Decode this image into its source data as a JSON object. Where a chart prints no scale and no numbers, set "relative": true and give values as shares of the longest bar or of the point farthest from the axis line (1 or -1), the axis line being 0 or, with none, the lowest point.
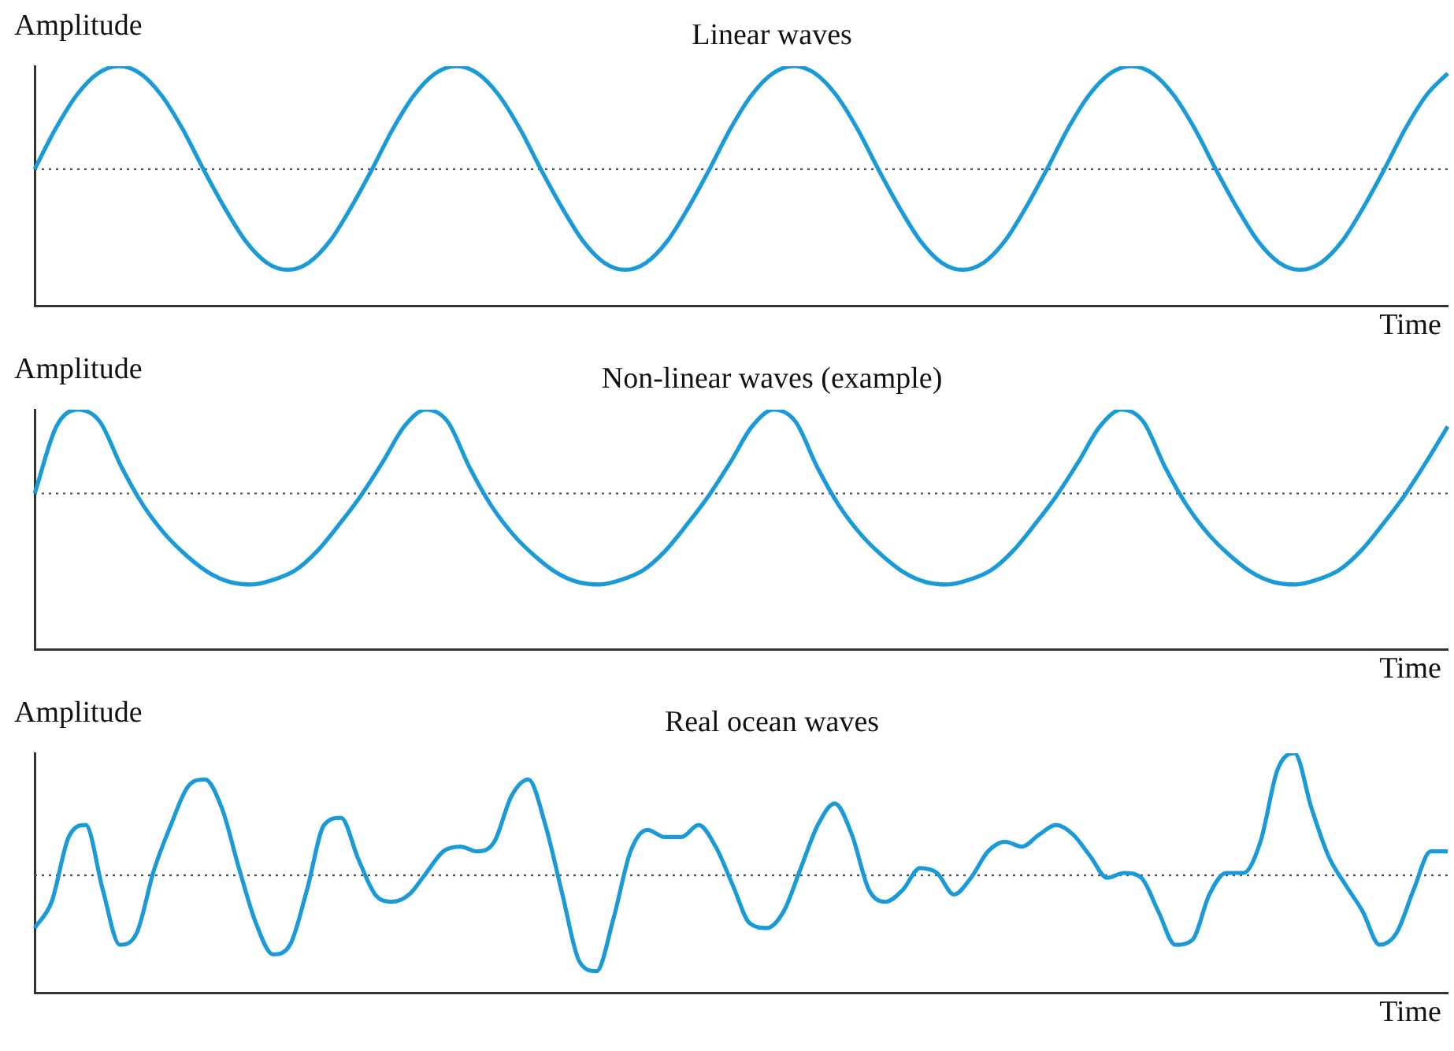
{
  "chart_data": [
    {
      "type": "line",
      "title": "Linear waves",
      "xlabel": "Time",
      "ylabel": "Amplitude",
      "relative": true,
      "marker": "none",
      "categories": [
        null,
        null,
        null,
        null,
        null,
        null,
        null,
        null,
        null,
        null,
        null,
        null,
        null,
        null,
        null,
        null,
        null,
        null,
        null,
        null,
        null,
        null,
        null,
        null,
        null,
        null,
        null,
        null,
        null,
        null,
        null,
        null,
        null,
        null,
        null,
        null,
        null,
        null,
        null,
        null,
        null,
        null,
        null,
        null,
        null,
        null,
        null,
        null,
        null,
        null,
        null,
        null,
        null,
        null,
        null,
        null,
        null,
        null,
        null,
        null,
        null,
        null,
        null,
        null,
        null,
        null,
        null,
        null
      ],
      "series": [
        {
          "color": "#1a9bd7",
          "values": [
            0.57,
            0.74,
            0.88,
            0.97,
            1,
            0.97,
            0.88,
            0.74,
            0.57,
            0.41,
            0.27,
            0.18,
            0.15,
            0.18,
            0.27,
            0.41,
            0.57,
            0.74,
            0.88,
            0.97,
            1,
            0.97,
            0.88,
            0.74,
            0.57,
            0.41,
            0.27,
            0.18,
            0.15,
            0.18,
            0.27,
            0.41,
            0.57,
            0.74,
            0.88,
            0.97,
            1,
            0.97,
            0.88,
            0.74,
            0.57,
            0.41,
            0.27,
            0.18,
            0.15,
            0.18,
            0.27,
            0.41,
            0.57,
            0.74,
            0.88,
            0.97,
            1,
            0.97,
            0.88,
            0.74,
            0.57,
            0.41,
            0.27,
            0.18,
            0.15,
            0.18,
            0.27,
            0.41,
            0.57,
            0.74,
            0.88,
            0.97
          ]
        }
      ],
      "ref_lines": [
        {
          "axis": "y",
          "value": 0.57,
          "color": "#555555",
          "line_style": "dotted"
        }
      ]
    },
    {
      "type": "line",
      "title": "Non-linear waves (example)",
      "xlabel": "Time",
      "ylabel": "Amplitude",
      "relative": true,
      "marker": "none",
      "categories": [
        null,
        null,
        null,
        null,
        null,
        null,
        null,
        null,
        null,
        null,
        null,
        null,
        null,
        null,
        null,
        null,
        null,
        null,
        null,
        null,
        null,
        null,
        null,
        null,
        null,
        null,
        null,
        null,
        null,
        null,
        null,
        null,
        null,
        null,
        null,
        null,
        null,
        null,
        null,
        null,
        null,
        null,
        null,
        null,
        null,
        null,
        null,
        null,
        null,
        null,
        null,
        null,
        null,
        null,
        null,
        null,
        null,
        null,
        null,
        null,
        null,
        null,
        null,
        null,
        null,
        null
      ],
      "series": [
        {
          "color": "#1a9bd7",
          "values": [
            0.65,
            0.93,
            1,
            0.95,
            0.76,
            0.6,
            0.48,
            0.39,
            0.32,
            0.28,
            0.27,
            0.29,
            0.33,
            0.41,
            0.52,
            0.64,
            0.78,
            0.93,
            1,
            0.95,
            0.76,
            0.6,
            0.48,
            0.39,
            0.32,
            0.28,
            0.27,
            0.29,
            0.33,
            0.41,
            0.52,
            0.64,
            0.78,
            0.93,
            1,
            0.95,
            0.76,
            0.6,
            0.48,
            0.39,
            0.32,
            0.28,
            0.27,
            0.29,
            0.33,
            0.41,
            0.52,
            0.64,
            0.78,
            0.93,
            1,
            0.95,
            0.76,
            0.6,
            0.48,
            0.39,
            0.32,
            0.28,
            0.27,
            0.29,
            0.33,
            0.41,
            0.52,
            0.64,
            0.78,
            0.93
          ]
        }
      ],
      "ref_lines": [
        {
          "axis": "y",
          "value": 0.65,
          "color": "#555555",
          "line_style": "dotted"
        }
      ]
    },
    {
      "type": "line",
      "title": "Real ocean waves",
      "xlabel": "Time",
      "ylabel": "Amplitude",
      "relative": true,
      "marker": "none",
      "categories": [
        null,
        null,
        null,
        null,
        null,
        null,
        null,
        null,
        null,
        null,
        null,
        null,
        null,
        null,
        null,
        null,
        null,
        null,
        null,
        null,
        null,
        null,
        null,
        null,
        null,
        null,
        null,
        null,
        null,
        null,
        null,
        null,
        null,
        null,
        null,
        null,
        null,
        null,
        null,
        null,
        null,
        null,
        null,
        null,
        null,
        null,
        null,
        null,
        null,
        null,
        null,
        null,
        null,
        null,
        null,
        null,
        null,
        null,
        null,
        null,
        null,
        null,
        null,
        null,
        null,
        null,
        null,
        null,
        null,
        null,
        null,
        null,
        null,
        null,
        null,
        null,
        null,
        null,
        null,
        null,
        null,
        null,
        null,
        null
      ],
      "series": [
        {
          "color": "#1a9bd7",
          "values": [
            0.27,
            0.38,
            0.65,
            0.7,
            0.43,
            0.2,
            0.25,
            0.51,
            0.7,
            0.86,
            0.89,
            0.77,
            0.52,
            0.29,
            0.16,
            0.2,
            0.43,
            0.7,
            0.73,
            0.56,
            0.41,
            0.38,
            0.41,
            0.5,
            0.59,
            0.61,
            0.59,
            0.63,
            0.82,
            0.89,
            0.7,
            0.41,
            0.13,
            0.09,
            0.31,
            0.59,
            0.68,
            0.65,
            0.65,
            0.7,
            0.61,
            0.45,
            0.29,
            0.27,
            0.34,
            0.52,
            0.7,
            0.79,
            0.66,
            0.43,
            0.38,
            0.43,
            0.52,
            0.5,
            0.41,
            0.48,
            0.59,
            0.63,
            0.61,
            0.66,
            0.7,
            0.66,
            0.57,
            0.48,
            0.5,
            0.48,
            0.34,
            0.2,
            0.22,
            0.41,
            0.5,
            0.5,
            0.63,
            0.93,
            1,
            0.77,
            0.57,
            0.45,
            0.34,
            0.2,
            0.25,
            0.43,
            0.59,
            0.59
          ]
        }
      ],
      "ref_lines": [
        {
          "axis": "y",
          "value": 0.49,
          "color": "#555555",
          "line_style": "dotted"
        }
      ]
    }
  ]
}
